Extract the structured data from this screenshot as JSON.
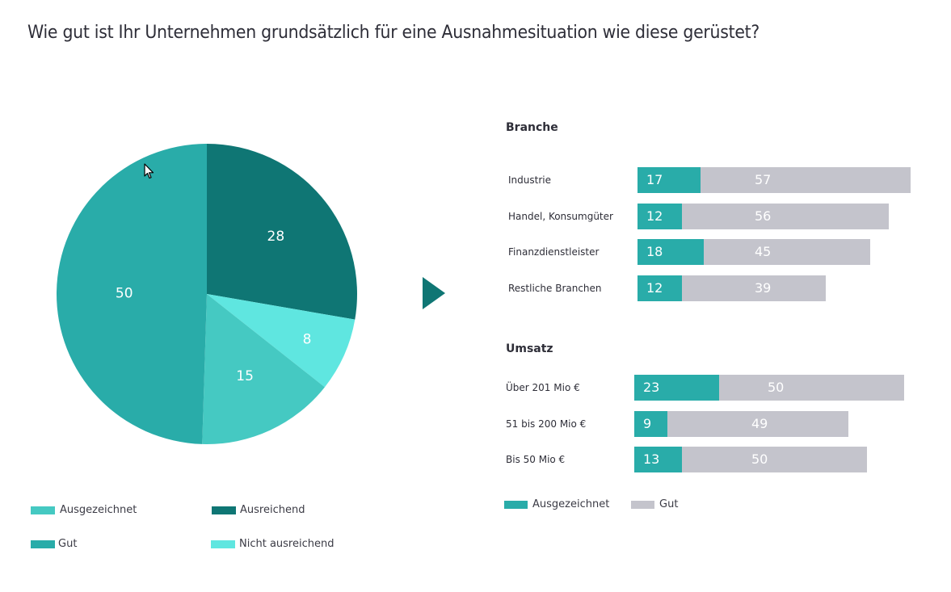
{
  "title": "Wie gut ist Ihr Unternehmen grundsätzlich für eine Ausnahmesituation wie diese gerüstet?",
  "colors": {
    "ausgezeichnet": "#45c9c2",
    "gut": "#29aca9",
    "ausreichend": "#0f7674",
    "nicht_ausreichend": "#5fe6e0",
    "bar_ausgezeichnet": "#29aca9",
    "bar_gut": "#c4c4cc",
    "arrow": "#0f7674"
  },
  "chart_data": [
    {
      "type": "pie",
      "title": "",
      "start": "12 o'clock, clockwise",
      "slices": [
        {
          "label": "Ausreichend",
          "value": 28,
          "color": "#0f7674"
        },
        {
          "label": "Nicht ausreichend",
          "value": 8,
          "color": "#5fe6e0"
        },
        {
          "label": "Ausgezeichnet",
          "value": 15,
          "color": "#45c9c2"
        },
        {
          "label": "Gut",
          "value": 50,
          "color": "#29aca9"
        }
      ],
      "legend": [
        "Ausgezeichnet",
        "Ausreichend",
        "Gut",
        "Nicht ausreichend"
      ],
      "legend_placement": "bottom"
    },
    {
      "type": "bar",
      "orientation": "horizontal",
      "stacked": true,
      "title": "Branche",
      "categories": [
        "Industrie",
        "Handel, Konsumgüter",
        "Finanzdienstleister",
        "Restliche Branchen"
      ],
      "series": [
        {
          "name": "Ausgezeichnet",
          "values": [
            17,
            12,
            18,
            12
          ]
        },
        {
          "name": "Gut",
          "values": [
            57,
            56,
            45,
            39
          ]
        }
      ]
    },
    {
      "type": "bar",
      "orientation": "horizontal",
      "stacked": true,
      "title": "Umsatz",
      "categories": [
        "Über 201 Mio €",
        "51 bis 200 Mio €",
        "Bis 50 Mio €"
      ],
      "series": [
        {
          "name": "Ausgezeichnet",
          "values": [
            23,
            9,
            13
          ]
        },
        {
          "name": "Gut",
          "values": [
            50,
            49,
            50
          ]
        }
      ],
      "legend": [
        "Ausgezeichnet",
        "Gut"
      ],
      "legend_placement": "bottom-left"
    }
  ],
  "pie_legend": {
    "items": [
      {
        "label": "Ausgezeichnet"
      },
      {
        "label": "Ausreichend"
      },
      {
        "label": "Gut"
      },
      {
        "label": "Nicht ausreichend"
      }
    ]
  },
  "bar_legend": {
    "items": [
      {
        "label": "Ausgezeichnet"
      },
      {
        "label": "Gut"
      }
    ]
  },
  "icons": {
    "arrow": "triangle-right-icon",
    "cursor": "mouse-pointer-icon"
  }
}
